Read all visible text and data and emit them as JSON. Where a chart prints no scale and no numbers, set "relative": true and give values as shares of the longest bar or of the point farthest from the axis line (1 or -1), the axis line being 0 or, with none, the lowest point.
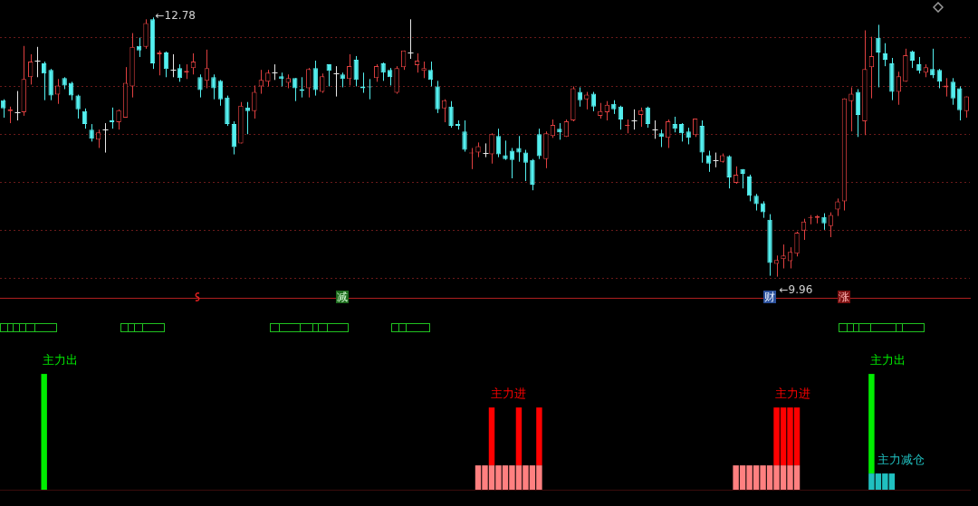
{
  "chart_data": [
    {
      "type": "candlestick",
      "categories": [
        null,
        null,
        null,
        null,
        null,
        null,
        null,
        null,
        null,
        null,
        null,
        null,
        null,
        null,
        null,
        null,
        null,
        null,
        null,
        null,
        null,
        null,
        null,
        null,
        null,
        null,
        null,
        null,
        null,
        null,
        null,
        null,
        null,
        null,
        null,
        null,
        null,
        null,
        null,
        null,
        null,
        null,
        null,
        null,
        null,
        null,
        null,
        null,
        null,
        null,
        null,
        null,
        null,
        null,
        null,
        null,
        null,
        null,
        null,
        null,
        null,
        null,
        null,
        null,
        null,
        null,
        null,
        null,
        null,
        null,
        null,
        null,
        null,
        null,
        null,
        null,
        null,
        null,
        null,
        null,
        null,
        null,
        null,
        null,
        null,
        null,
        null,
        null,
        null,
        null,
        null,
        null,
        null,
        null,
        null,
        null,
        null,
        null,
        null,
        null,
        null,
        null,
        null,
        null,
        null,
        null,
        null,
        null,
        null,
        null,
        null,
        null,
        null,
        null,
        null,
        null,
        null,
        null,
        null,
        null,
        null,
        null,
        null,
        null,
        null,
        null,
        null,
        null,
        null,
        null,
        null,
        null,
        null,
        null,
        null,
        null,
        null,
        null,
        null,
        null,
        null,
        null,
        null
      ],
      "ohlc": [
        [
          11.88,
          11.89,
          11.69,
          11.79
        ],
        [
          11.76,
          11.81,
          11.63,
          11.78
        ],
        [
          11.75,
          11.98,
          11.66,
          11.75
        ],
        [
          11.75,
          12.47,
          11.71,
          12.11
        ],
        [
          12.13,
          12.38,
          12.05,
          12.3
        ],
        [
          12.31,
          12.46,
          12.13,
          12.31
        ],
        [
          12.28,
          12.3,
          11.88,
          12.17
        ],
        [
          12.21,
          12.22,
          11.88,
          11.93
        ],
        [
          11.94,
          12.11,
          11.84,
          12.04
        ],
        [
          12.12,
          12.13,
          12.0,
          12.04
        ],
        [
          12.07,
          12.08,
          11.88,
          11.93
        ],
        [
          11.93,
          11.94,
          11.68,
          11.78
        ],
        [
          11.76,
          11.79,
          11.57,
          11.62
        ],
        [
          11.56,
          11.62,
          11.43,
          11.46
        ],
        [
          11.45,
          11.56,
          11.36,
          11.53
        ],
        [
          11.56,
          11.63,
          11.31,
          11.56
        ],
        [
          11.66,
          11.8,
          11.57,
          11.64
        ],
        [
          11.64,
          11.78,
          11.56,
          11.77
        ],
        [
          11.69,
          12.24,
          11.69,
          12.07
        ],
        [
          12.03,
          12.61,
          11.91,
          12.46
        ],
        [
          12.47,
          12.56,
          12.35,
          12.42
        ],
        [
          12.46,
          12.76,
          12.44,
          12.72
        ],
        [
          12.76,
          12.78,
          12.22,
          12.28
        ],
        [
          12.38,
          12.42,
          12.15,
          12.4
        ],
        [
          12.4,
          12.41,
          12.13,
          12.22
        ],
        [
          12.21,
          12.38,
          12.13,
          12.21
        ],
        [
          12.23,
          12.27,
          12.08,
          12.12
        ],
        [
          12.18,
          12.27,
          12.11,
          12.2
        ],
        [
          12.23,
          12.39,
          12.16,
          12.3
        ],
        [
          12.13,
          12.16,
          11.91,
          11.99
        ],
        [
          12.09,
          12.43,
          12.01,
          12.23
        ],
        [
          12.13,
          12.16,
          11.89,
          12.01
        ],
        [
          12.09,
          12.1,
          11.82,
          11.89
        ],
        [
          11.91,
          11.93,
          11.6,
          11.62
        ],
        [
          11.62,
          11.65,
          11.29,
          11.37
        ],
        [
          11.41,
          11.86,
          11.41,
          11.82
        ],
        [
          11.8,
          11.86,
          11.51,
          11.76
        ],
        [
          11.76,
          12.04,
          11.68,
          11.97
        ],
        [
          12.03,
          12.21,
          11.95,
          12.1
        ],
        [
          12.08,
          12.21,
          12.03,
          12.18
        ],
        [
          12.18,
          12.27,
          12.1,
          12.18
        ],
        [
          12.14,
          12.18,
          12.03,
          12.11
        ],
        [
          12.07,
          12.16,
          12.01,
          12.12
        ],
        [
          12.12,
          12.12,
          11.87,
          12.01
        ],
        [
          12.0,
          12.13,
          11.91,
          11.98
        ],
        [
          12.01,
          12.23,
          11.91,
          12.22
        ],
        [
          12.23,
          12.31,
          11.93,
          11.99
        ],
        [
          11.97,
          12.17,
          11.96,
          12.14
        ],
        [
          12.27,
          12.27,
          12.03,
          12.2
        ],
        [
          12.17,
          12.25,
          11.92,
          12.17
        ],
        [
          12.16,
          12.18,
          12.02,
          12.11
        ],
        [
          12.11,
          12.38,
          12.04,
          12.25
        ],
        [
          12.32,
          12.36,
          12.03,
          12.1
        ],
        [
          12.03,
          12.18,
          11.96,
          12.01
        ],
        [
          12.03,
          12.11,
          11.89,
          12.02
        ],
        [
          12.12,
          12.27,
          12.08,
          12.25
        ],
        [
          12.28,
          12.29,
          12.09,
          12.18
        ],
        [
          12.21,
          12.23,
          12.04,
          12.13
        ],
        [
          11.96,
          12.25,
          11.95,
          12.23
        ],
        [
          12.24,
          12.42,
          12.21,
          12.42
        ],
        [
          12.4,
          12.76,
          12.33,
          12.4
        ],
        [
          12.26,
          12.39,
          12.18,
          12.31
        ],
        [
          12.2,
          12.3,
          12.12,
          12.23
        ],
        [
          12.21,
          12.3,
          12.03,
          12.1
        ],
        [
          12.03,
          12.09,
          11.74,
          11.78
        ],
        [
          11.79,
          11.89,
          11.64,
          11.88
        ],
        [
          11.81,
          11.87,
          11.58,
          11.6
        ],
        [
          11.62,
          11.66,
          11.56,
          11.6
        ],
        [
          11.54,
          11.66,
          11.32,
          11.34
        ],
        [
          11.3,
          11.36,
          11.13,
          11.31
        ],
        [
          11.31,
          11.42,
          11.26,
          11.38
        ],
        [
          11.31,
          11.41,
          11.26,
          11.31
        ],
        [
          11.29,
          11.52,
          11.19,
          11.51
        ],
        [
          11.49,
          11.57,
          11.26,
          11.29
        ],
        [
          11.28,
          11.44,
          11.23,
          11.24
        ],
        [
          11.33,
          11.36,
          11.03,
          11.23
        ],
        [
          11.36,
          11.49,
          11.21,
          11.31
        ],
        [
          11.31,
          11.34,
          11.0,
          11.2
        ],
        [
          11.23,
          11.24,
          10.9,
          10.96
        ],
        [
          11.51,
          11.57,
          11.24,
          11.27
        ],
        [
          11.24,
          11.54,
          11.14,
          11.52
        ],
        [
          11.49,
          11.67,
          11.47,
          11.61
        ],
        [
          11.57,
          11.63,
          11.45,
          11.53
        ],
        [
          11.48,
          11.67,
          11.48,
          11.65
        ],
        [
          11.66,
          12.03,
          11.65,
          12.01
        ],
        [
          11.97,
          12.02,
          11.81,
          11.88
        ],
        [
          11.89,
          11.97,
          11.78,
          11.94
        ],
        [
          11.95,
          11.97,
          11.76,
          11.81
        ],
        [
          11.71,
          11.85,
          11.68,
          11.76
        ],
        [
          11.75,
          11.87,
          11.66,
          11.83
        ],
        [
          11.84,
          11.88,
          11.73,
          11.78
        ],
        [
          11.81,
          11.82,
          11.56,
          11.67
        ],
        [
          11.6,
          11.67,
          11.52,
          11.61
        ],
        [
          11.66,
          11.78,
          11.56,
          11.66
        ],
        [
          11.72,
          11.8,
          11.59,
          11.77
        ],
        [
          11.8,
          11.81,
          11.58,
          11.62
        ],
        [
          11.56,
          11.66,
          11.46,
          11.56
        ],
        [
          11.52,
          11.56,
          11.37,
          11.48
        ],
        [
          11.47,
          11.67,
          11.36,
          11.65
        ],
        [
          11.62,
          11.7,
          11.53,
          11.57
        ],
        [
          11.62,
          11.63,
          11.43,
          11.52
        ],
        [
          11.54,
          11.58,
          11.4,
          11.47
        ],
        [
          11.5,
          11.68,
          11.48,
          11.68
        ],
        [
          11.6,
          11.66,
          11.2,
          11.31
        ],
        [
          11.28,
          11.33,
          11.1,
          11.19
        ],
        [
          11.23,
          11.31,
          11.15,
          11.23
        ],
        [
          11.21,
          11.3,
          11.2,
          11.28
        ],
        [
          11.27,
          11.28,
          10.92,
          11.04
        ],
        [
          10.98,
          11.16,
          10.97,
          11.07
        ],
        [
          11.13,
          11.13,
          10.92,
          11.08
        ],
        [
          11.05,
          11.07,
          10.78,
          10.84
        ],
        [
          10.84,
          10.86,
          10.68,
          10.75
        ],
        [
          10.76,
          10.78,
          10.6,
          10.66
        ],
        [
          10.58,
          10.64,
          9.97,
          10.11
        ],
        [
          10.1,
          10.19,
          9.96,
          10.14
        ],
        [
          10.15,
          10.31,
          10.05,
          10.19
        ],
        [
          10.13,
          10.28,
          10.05,
          10.23
        ],
        [
          10.21,
          10.45,
          10.18,
          10.44
        ],
        [
          10.46,
          10.59,
          10.36,
          10.56
        ],
        [
          10.6,
          10.63,
          10.53,
          10.61
        ],
        [
          10.6,
          10.63,
          10.54,
          10.62
        ],
        [
          10.61,
          10.65,
          10.47,
          10.54
        ],
        [
          10.51,
          10.66,
          10.39,
          10.63
        ],
        [
          10.69,
          10.81,
          10.62,
          10.78
        ],
        [
          10.78,
          11.9,
          10.68,
          11.9
        ],
        [
          11.87,
          12.02,
          11.54,
          11.95
        ],
        [
          11.97,
          12.0,
          11.48,
          11.72
        ],
        [
          11.65,
          12.64,
          11.5,
          12.22
        ],
        [
          12.24,
          12.57,
          11.9,
          12.36
        ],
        [
          12.56,
          12.7,
          12.02,
          12.4
        ],
        [
          12.39,
          12.5,
          12.25,
          12.32
        ],
        [
          12.28,
          12.34,
          11.88,
          11.97
        ],
        [
          11.97,
          12.19,
          11.83,
          12.14
        ],
        [
          12.08,
          12.44,
          12.08,
          12.37
        ],
        [
          12.41,
          12.42,
          12.23,
          12.31
        ],
        [
          12.27,
          12.35,
          12.17,
          12.2
        ],
        [
          12.18,
          12.27,
          12.13,
          12.24
        ],
        [
          12.22,
          12.44,
          12.12,
          12.15
        ],
        [
          12.21,
          12.22,
          12.01,
          12.08
        ],
        [
          12.02,
          12.12,
          11.92,
          12.04
        ],
        [
          12.08,
          12.12,
          11.83,
          11.9
        ],
        [
          12.01,
          12.03,
          11.66,
          11.77
        ],
        [
          11.76,
          11.92,
          11.69,
          11.92
        ]
      ],
      "colors": [
        "#54f0f0",
        "#e04040",
        "#e8e8e8",
        "#e04040",
        "#e04040",
        "#e8e8e8",
        "#54f0f0",
        "#54f0f0",
        "#e04040",
        "#54f0f0",
        "#54f0f0",
        "#54f0f0",
        "#54f0f0",
        "#54f0f0",
        "#e04040",
        "#e8e8e8",
        "#54f0f0",
        "#e04040",
        "#e04040",
        "#e04040",
        "#54f0f0",
        "#e04040",
        "#54f0f0",
        "#e04040",
        "#54f0f0",
        "#e8e8e8",
        "#54f0f0",
        "#e04040",
        "#e04040",
        "#54f0f0",
        "#e04040",
        "#54f0f0",
        "#54f0f0",
        "#54f0f0",
        "#54f0f0",
        "#e04040",
        "#54f0f0",
        "#e04040",
        "#e04040",
        "#e04040",
        "#e8e8e8",
        "#54f0f0",
        "#e04040",
        "#54f0f0",
        "#54f0f0",
        "#e04040",
        "#54f0f0",
        "#e04040",
        "#54f0f0",
        "#e8e8e8",
        "#54f0f0",
        "#e04040",
        "#54f0f0",
        "#54f0f0",
        "#54f0f0",
        "#e04040",
        "#54f0f0",
        "#54f0f0",
        "#e04040",
        "#e04040",
        "#e8e8e8",
        "#e04040",
        "#e04040",
        "#54f0f0",
        "#54f0f0",
        "#e04040",
        "#54f0f0",
        "#54f0f0",
        "#54f0f0",
        "#e04040",
        "#e04040",
        "#e8e8e8",
        "#e04040",
        "#54f0f0",
        "#54f0f0",
        "#54f0f0",
        "#54f0f0",
        "#54f0f0",
        "#54f0f0",
        "#54f0f0",
        "#e04040",
        "#e04040",
        "#54f0f0",
        "#e04040",
        "#e04040",
        "#54f0f0",
        "#e04040",
        "#54f0f0",
        "#e04040",
        "#e04040",
        "#54f0f0",
        "#54f0f0",
        "#e04040",
        "#e8e8e8",
        "#e04040",
        "#54f0f0",
        "#e8e8e8",
        "#54f0f0",
        "#e04040",
        "#54f0f0",
        "#54f0f0",
        "#54f0f0",
        "#e04040",
        "#54f0f0",
        "#54f0f0",
        "#e8e8e8",
        "#e04040",
        "#54f0f0",
        "#e04040",
        "#54f0f0",
        "#54f0f0",
        "#54f0f0",
        "#54f0f0",
        "#54f0f0",
        "#e04040",
        "#e04040",
        "#e04040",
        "#e04040",
        "#e04040",
        "#e04040",
        "#e04040",
        "#54f0f0",
        "#e04040",
        "#e04040",
        "#e04040",
        "#e04040",
        "#54f0f0",
        "#e04040",
        "#e04040",
        "#54f0f0",
        "#54f0f0",
        "#54f0f0",
        "#e04040",
        "#e04040",
        "#54f0f0",
        "#54f0f0",
        "#e04040",
        "#54f0f0",
        "#54f0f0",
        "#e04040",
        "#54f0f0",
        "#54f0f0",
        "#e04040"
      ],
      "ylim": [
        9.73,
        12.97
      ],
      "yticks": [
        {
          "value": 12.56,
          "label": null
        },
        {
          "value": 12.03,
          "label": null
        },
        {
          "value": 11.51,
          "label": null
        },
        {
          "value": 10.99,
          "label": null
        },
        {
          "value": 10.46,
          "label": null
        },
        {
          "value": 9.94,
          "label": null
        }
      ],
      "grid": "y",
      "tick_labels": false,
      "annotations": [
        "←12.78",
        "←9.96",
        "减",
        "财",
        "涨"
      ]
    },
    {
      "type": "bar",
      "relative": true,
      "stacked": true,
      "tick_labels": false,
      "categories": [
        null,
        null,
        null,
        null,
        null,
        null,
        null,
        null,
        null,
        null,
        null,
        null,
        null,
        null,
        null,
        null,
        null,
        null,
        null,
        null,
        null,
        null,
        null,
        null,
        null,
        null,
        null,
        null,
        null,
        null,
        null,
        null,
        null,
        null,
        null,
        null,
        null,
        null,
        null,
        null,
        null,
        null,
        null,
        null,
        null,
        null,
        null,
        null,
        null,
        null,
        null,
        null,
        null,
        null,
        null,
        null,
        null,
        null,
        null,
        null,
        null,
        null,
        null,
        null,
        null,
        null,
        null,
        null,
        null,
        null,
        null,
        null,
        null,
        null,
        null,
        null,
        null,
        null,
        null,
        null,
        null,
        null,
        null,
        null,
        null,
        null,
        null,
        null,
        null,
        null,
        null,
        null,
        null,
        null,
        null,
        null,
        null,
        null,
        null,
        null,
        null,
        null,
        null,
        null,
        null,
        null,
        null,
        null,
        null,
        null,
        null,
        null,
        null,
        null,
        null,
        null,
        null,
        null,
        null,
        null,
        null,
        null,
        null,
        null,
        null,
        null,
        null,
        null,
        null,
        null,
        null,
        null,
        null,
        null,
        null,
        null,
        null,
        null,
        null,
        null,
        null,
        null,
        null
      ],
      "series": [
        {
          "color": "#ff8080",
          "values": [
            null,
            null,
            null,
            null,
            null,
            null,
            null,
            null,
            null,
            null,
            null,
            null,
            null,
            null,
            null,
            null,
            null,
            null,
            null,
            null,
            null,
            null,
            null,
            null,
            null,
            null,
            null,
            null,
            null,
            null,
            null,
            null,
            null,
            null,
            null,
            null,
            null,
            null,
            null,
            null,
            null,
            null,
            null,
            null,
            null,
            null,
            null,
            null,
            null,
            null,
            null,
            null,
            null,
            null,
            null,
            null,
            null,
            null,
            null,
            null,
            null,
            null,
            null,
            null,
            null,
            null,
            null,
            null,
            null,
            null,
            0.21,
            0.21,
            0.21,
            0.21,
            0.21,
            0.21,
            0.21,
            0.21,
            0.21,
            0.21,
            null,
            null,
            null,
            null,
            null,
            null,
            null,
            null,
            null,
            null,
            null,
            null,
            null,
            null,
            null,
            null,
            null,
            null,
            null,
            null,
            null,
            null,
            null,
            null,
            null,
            null,
            null,
            null,
            0.21,
            0.21,
            0.21,
            0.21,
            0.21,
            0.21,
            0.21,
            0.21,
            0.21,
            0.21,
            null,
            null,
            null,
            null,
            null,
            null,
            null,
            null,
            null,
            null,
            null,
            null,
            null,
            null,
            null,
            null,
            null,
            null,
            null,
            null,
            null,
            null,
            null,
            null,
            null
          ]
        },
        {
          "name": "主力减仓",
          "color": "#20c0c0",
          "values": [
            null,
            null,
            null,
            null,
            null,
            null,
            null,
            null,
            null,
            null,
            null,
            null,
            null,
            null,
            null,
            null,
            null,
            null,
            null,
            null,
            null,
            null,
            null,
            null,
            null,
            null,
            null,
            null,
            null,
            null,
            null,
            null,
            null,
            null,
            null,
            null,
            null,
            null,
            null,
            null,
            null,
            null,
            null,
            null,
            null,
            null,
            null,
            null,
            null,
            null,
            null,
            null,
            null,
            null,
            null,
            null,
            null,
            null,
            null,
            null,
            null,
            null,
            null,
            null,
            null,
            null,
            null,
            null,
            null,
            null,
            null,
            null,
            null,
            null,
            null,
            null,
            null,
            null,
            null,
            null,
            null,
            null,
            null,
            null,
            null,
            null,
            null,
            null,
            null,
            null,
            null,
            null,
            null,
            null,
            null,
            null,
            null,
            null,
            null,
            null,
            null,
            null,
            null,
            null,
            null,
            null,
            null,
            null,
            null,
            null,
            null,
            null,
            null,
            null,
            null,
            null,
            null,
            null,
            null,
            null,
            null,
            null,
            null,
            null,
            null,
            null,
            null,
            null,
            0.14,
            0.14,
            0.14,
            0.14,
            null,
            null,
            null,
            null,
            null,
            null,
            null,
            null,
            null,
            null,
            null
          ]
        },
        {
          "name": "主力进",
          "color": "#ff0000",
          "values": [
            null,
            null,
            null,
            null,
            null,
            null,
            null,
            null,
            null,
            null,
            null,
            null,
            null,
            null,
            null,
            null,
            null,
            null,
            null,
            null,
            null,
            null,
            null,
            null,
            null,
            null,
            null,
            null,
            null,
            null,
            null,
            null,
            null,
            null,
            null,
            null,
            null,
            null,
            null,
            null,
            null,
            null,
            null,
            null,
            null,
            null,
            null,
            null,
            null,
            null,
            null,
            null,
            null,
            null,
            null,
            null,
            null,
            null,
            null,
            null,
            null,
            null,
            null,
            null,
            null,
            null,
            null,
            null,
            null,
            null,
            null,
            null,
            0.5,
            null,
            null,
            null,
            0.5,
            null,
            null,
            0.5,
            null,
            null,
            null,
            null,
            null,
            null,
            null,
            null,
            null,
            null,
            null,
            null,
            null,
            null,
            null,
            null,
            null,
            null,
            null,
            null,
            null,
            null,
            null,
            null,
            null,
            null,
            null,
            null,
            null,
            null,
            null,
            null,
            null,
            null,
            0.5,
            0.5,
            0.5,
            0.5,
            null,
            null,
            null,
            null,
            null,
            null,
            null,
            null,
            null,
            null,
            null,
            null,
            null,
            null,
            null,
            null,
            null,
            null,
            null,
            null,
            null,
            null,
            null,
            null,
            null
          ]
        },
        {
          "name": "主力出",
          "color": "#00ee00",
          "values": [
            null,
            null,
            null,
            null,
            null,
            null,
            1,
            null,
            null,
            null,
            null,
            null,
            null,
            null,
            null,
            null,
            null,
            null,
            null,
            null,
            null,
            null,
            null,
            null,
            null,
            null,
            null,
            null,
            null,
            null,
            null,
            null,
            null,
            null,
            null,
            null,
            null,
            null,
            null,
            null,
            null,
            null,
            null,
            null,
            null,
            null,
            null,
            null,
            null,
            null,
            null,
            null,
            null,
            null,
            null,
            null,
            null,
            null,
            null,
            null,
            null,
            null,
            null,
            null,
            null,
            null,
            null,
            null,
            null,
            null,
            null,
            null,
            null,
            null,
            null,
            null,
            null,
            null,
            null,
            null,
            null,
            null,
            null,
            null,
            null,
            null,
            null,
            null,
            null,
            null,
            null,
            null,
            null,
            null,
            null,
            null,
            null,
            null,
            null,
            null,
            null,
            null,
            null,
            null,
            null,
            null,
            null,
            null,
            null,
            null,
            null,
            null,
            null,
            null,
            null,
            null,
            null,
            null,
            null,
            null,
            null,
            null,
            null,
            null,
            null,
            null,
            null,
            null,
            0.86,
            null,
            null,
            null,
            null,
            null,
            null,
            null,
            null,
            null,
            null,
            null,
            null,
            null,
            null
          ]
        }
      ]
    }
  ]
}
